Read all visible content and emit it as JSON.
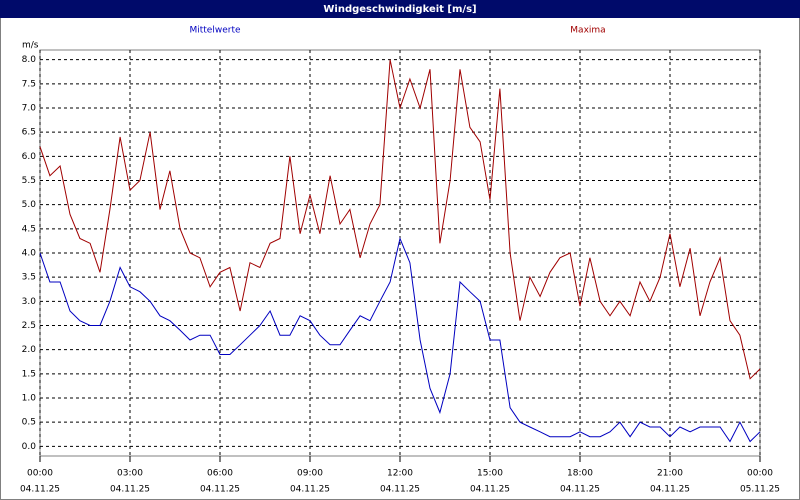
{
  "chart_data": {
    "type": "line",
    "title": "Windgeschwindigkeit [m/s]",
    "y_unit": "m/s",
    "x": [
      0,
      0.33,
      0.67,
      1,
      1.33,
      1.67,
      2,
      2.33,
      2.67,
      3,
      3.33,
      3.67,
      4,
      4.33,
      4.67,
      5,
      5.33,
      5.67,
      6,
      6.33,
      6.67,
      7,
      7.33,
      7.67,
      8,
      8.33,
      8.67,
      9,
      9.33,
      9.67,
      10,
      10.33,
      10.67,
      11,
      11.33,
      11.67,
      12,
      12.33,
      12.67,
      13,
      13.33,
      13.67,
      14,
      14.33,
      14.67,
      15,
      15.33,
      15.67,
      16,
      16.33,
      16.67,
      17,
      17.33,
      17.67,
      18,
      18.33,
      18.67,
      19,
      19.33,
      19.67,
      20,
      20.33,
      20.67,
      21,
      21.33,
      21.67,
      22,
      22.33,
      22.67,
      23,
      23.33,
      23.67,
      24
    ],
    "series": [
      {
        "name": "Mittelwerte",
        "color": "#0000c0",
        "values": [
          4.0,
          3.4,
          3.4,
          2.8,
          2.6,
          2.5,
          2.5,
          3.0,
          3.7,
          3.3,
          3.2,
          3.0,
          2.7,
          2.6,
          2.4,
          2.2,
          2.3,
          2.3,
          1.9,
          1.9,
          2.1,
          2.3,
          2.5,
          2.8,
          2.3,
          2.3,
          2.7,
          2.6,
          2.3,
          2.1,
          2.1,
          2.4,
          2.7,
          2.6,
          3.0,
          3.4,
          4.3,
          3.8,
          2.2,
          1.2,
          0.7,
          1.5,
          3.4,
          3.2,
          3.0,
          2.2,
          2.2,
          0.8,
          0.5,
          0.4,
          0.3,
          0.2,
          0.2,
          0.2,
          0.3,
          0.2,
          0.2,
          0.3,
          0.5,
          0.2,
          0.5,
          0.4,
          0.4,
          0.2,
          0.4,
          0.3,
          0.4,
          0.4,
          0.4,
          0.1,
          0.5,
          0.1,
          0.3
        ]
      },
      {
        "name": "Maxima",
        "color": "#a00000",
        "values": [
          6.2,
          5.6,
          5.8,
          4.8,
          4.3,
          4.2,
          3.6,
          4.9,
          6.4,
          5.3,
          5.5,
          6.5,
          4.9,
          5.7,
          4.5,
          4.0,
          3.9,
          3.3,
          3.6,
          3.7,
          2.8,
          3.8,
          3.7,
          4.2,
          4.3,
          6.0,
          4.4,
          5.2,
          4.4,
          5.6,
          4.6,
          4.9,
          3.9,
          4.6,
          5.0,
          8.0,
          7.0,
          7.6,
          7.0,
          7.8,
          4.2,
          5.5,
          7.8,
          6.6,
          6.3,
          5.1,
          7.4,
          4.0,
          2.6,
          3.5,
          3.1,
          3.6,
          3.9,
          4.0,
          2.9,
          3.9,
          3.0,
          2.7,
          3.0,
          2.7,
          3.4,
          3.0,
          3.5,
          4.4,
          3.3,
          4.1,
          2.7,
          3.4,
          3.9,
          2.6,
          2.3,
          1.4,
          1.6
        ]
      }
    ],
    "xlim": [
      0,
      24
    ],
    "xticks": [
      {
        "value": 0,
        "label": "00:00",
        "date": "04.11.25"
      },
      {
        "value": 3,
        "label": "03:00",
        "date": "04.11.25"
      },
      {
        "value": 6,
        "label": "06:00",
        "date": "04.11.25"
      },
      {
        "value": 9,
        "label": "09:00",
        "date": "04.11.25"
      },
      {
        "value": 12,
        "label": "12:00",
        "date": "04.11.25"
      },
      {
        "value": 15,
        "label": "15:00",
        "date": "04.11.25"
      },
      {
        "value": 18,
        "label": "18:00",
        "date": "04.11.25"
      },
      {
        "value": 21,
        "label": "21:00",
        "date": "04.11.25"
      },
      {
        "value": 24,
        "label": "00:00",
        "date": "05.11.25"
      }
    ],
    "ylim": [
      -0.2,
      8.2
    ],
    "yticks": [
      {
        "value": 0,
        "label": "0.0"
      },
      {
        "value": 0.5,
        "label": "0.5"
      },
      {
        "value": 1,
        "label": "1.0"
      },
      {
        "value": 1.5,
        "label": "1.5"
      },
      {
        "value": 2,
        "label": "2.0"
      },
      {
        "value": 2.5,
        "label": "2.5"
      },
      {
        "value": 3,
        "label": "3.0"
      },
      {
        "value": 3.5,
        "label": "3.5"
      },
      {
        "value": 4,
        "label": "4.0"
      },
      {
        "value": 4.5,
        "label": "4.5"
      },
      {
        "value": 5,
        "label": "5.0"
      },
      {
        "value": 5.5,
        "label": "5.5"
      },
      {
        "value": 6,
        "label": "6.0"
      },
      {
        "value": 6.5,
        "label": "6.5"
      },
      {
        "value": 7,
        "label": "7.0"
      },
      {
        "value": 7.5,
        "label": "7.5"
      },
      {
        "value": 8,
        "label": "8.0"
      }
    ],
    "grid": true
  }
}
